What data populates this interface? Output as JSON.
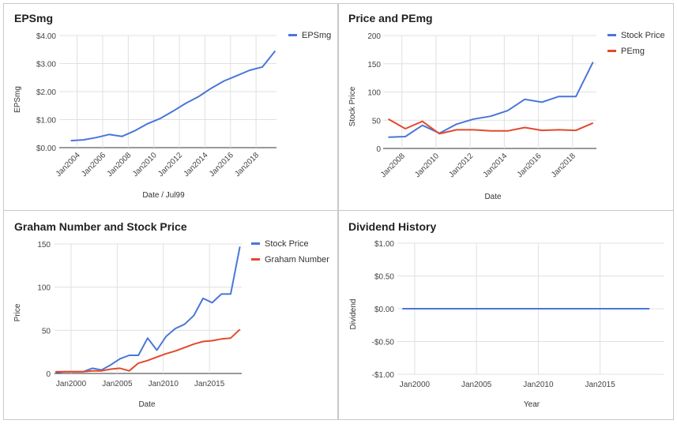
{
  "colors": {
    "blue": "#4a76d8",
    "red": "#e24a2c"
  },
  "chart_data": [
    {
      "id": "eps",
      "type": "line",
      "title": "EPSmg",
      "xlabel": "Date / Jul99",
      "ylabel": "EPSmg",
      "ylim": [
        0,
        4
      ],
      "yticks": [
        "$0.00",
        "$1.00",
        "$2.00",
        "$3.00",
        "$4.00"
      ],
      "xtick_labels": [
        "Jan2004",
        "Jan2006",
        "Jan2008",
        "Jan2010",
        "Jan2012",
        "Jan2014",
        "Jan2016",
        "Jan2018"
      ],
      "legend": "top-right",
      "series": [
        {
          "name": "EPSmg",
          "color": "#4a76d8",
          "x": [
            2003.5,
            2004.5,
            2005.5,
            2006.5,
            2007.5,
            2008.5,
            2009.5,
            2010.5,
            2011.5,
            2012.5,
            2013.5,
            2014.5,
            2015.5,
            2016.5,
            2017.5,
            2018.5,
            2019.5
          ],
          "y": [
            0.25,
            0.28,
            0.36,
            0.47,
            0.4,
            0.6,
            0.85,
            1.04,
            1.3,
            1.58,
            1.82,
            2.12,
            2.38,
            2.57,
            2.76,
            2.88,
            3.45
          ]
        }
      ]
    },
    {
      "id": "price-pe",
      "type": "line",
      "title": "Price and PEmg",
      "xlabel": "Date",
      "ylabel": "Stock Price",
      "ylim": [
        0,
        200
      ],
      "yticks": [
        "0",
        "50",
        "100",
        "150",
        "200"
      ],
      "xtick_labels": [
        "Jan2008",
        "Jan2010",
        "Jan2012",
        "Jan2014",
        "Jan2016",
        "Jan2018"
      ],
      "legend": "top-right",
      "series": [
        {
          "name": "Stock Price",
          "color": "#4a76d8",
          "x": [
            2007.2,
            2008.2,
            2009.2,
            2010.2,
            2011.2,
            2012.2,
            2013.2,
            2014.2,
            2015.2,
            2016.2,
            2017.2,
            2018.2,
            2019.2
          ],
          "y": [
            20,
            21,
            41,
            27,
            43,
            52,
            57,
            67,
            87,
            82,
            92,
            92,
            153
          ]
        },
        {
          "name": "PEmg",
          "color": "#e24a2c",
          "x": [
            2007.2,
            2008.2,
            2009.2,
            2010.2,
            2011.2,
            2012.2,
            2013.2,
            2014.2,
            2015.2,
            2016.2,
            2017.2,
            2018.2,
            2019.2
          ],
          "y": [
            52,
            35,
            48,
            26,
            33,
            33,
            31,
            31,
            37,
            32,
            33,
            32,
            45
          ]
        }
      ]
    },
    {
      "id": "graham",
      "type": "line",
      "title": "Graham Number and Stock Price",
      "xlabel": "Date",
      "ylabel": "Price",
      "ylim": [
        0,
        150
      ],
      "yticks": [
        "0",
        "50",
        "100",
        "150"
      ],
      "xtick_labels": [
        "Jan2000",
        "Jan2005",
        "Jan2010",
        "Jan2015"
      ],
      "legend": "top-right",
      "series": [
        {
          "name": "Stock Price",
          "color": "#4a76d8",
          "x": [
            1998.3,
            1999.3,
            2000.3,
            2001.3,
            2002.3,
            2003.3,
            2004.3,
            2005.3,
            2006.3,
            2007.3,
            2008.3,
            2009.3,
            2010.3,
            2011.3,
            2012.3,
            2013.3,
            2014.3,
            2015.3,
            2016.3,
            2017.3,
            2018.3
          ],
          "y": [
            1,
            2,
            2,
            2,
            6,
            4,
            10,
            17,
            21,
            21,
            41,
            27,
            43,
            52,
            57,
            67,
            87,
            82,
            92,
            92,
            147
          ]
        },
        {
          "name": "Graham Number",
          "color": "#e24a2c",
          "x": [
            1998.3,
            1999.3,
            2000.3,
            2001.3,
            2002.3,
            2003.3,
            2004.3,
            2005.3,
            2006.3,
            2007.3,
            2008.3,
            2009.3,
            2010.3,
            2011.3,
            2012.3,
            2013.3,
            2014.3,
            2015.3,
            2016.3,
            2017.3,
            2018.3
          ],
          "y": [
            2,
            2,
            2,
            2,
            3,
            3,
            5,
            6,
            3,
            12,
            15,
            19,
            23,
            26,
            30,
            34,
            37,
            38,
            40,
            41,
            51
          ]
        }
      ]
    },
    {
      "id": "dividend",
      "type": "line",
      "title": "Dividend History",
      "xlabel": "Year",
      "ylabel": "Dividend",
      "ylim": [
        -1,
        1
      ],
      "yticks": [
        "-$1.00",
        "-$0.50",
        "$0.00",
        "$0.50",
        "$1.00"
      ],
      "xtick_labels": [
        "Jan2000",
        "Jan2005",
        "Jan2010",
        "Jan2015"
      ],
      "legend": "none",
      "series": [
        {
          "color": "#4a76d8",
          "x": [
            1999,
            2019
          ],
          "y": [
            0,
            0
          ]
        }
      ]
    }
  ]
}
